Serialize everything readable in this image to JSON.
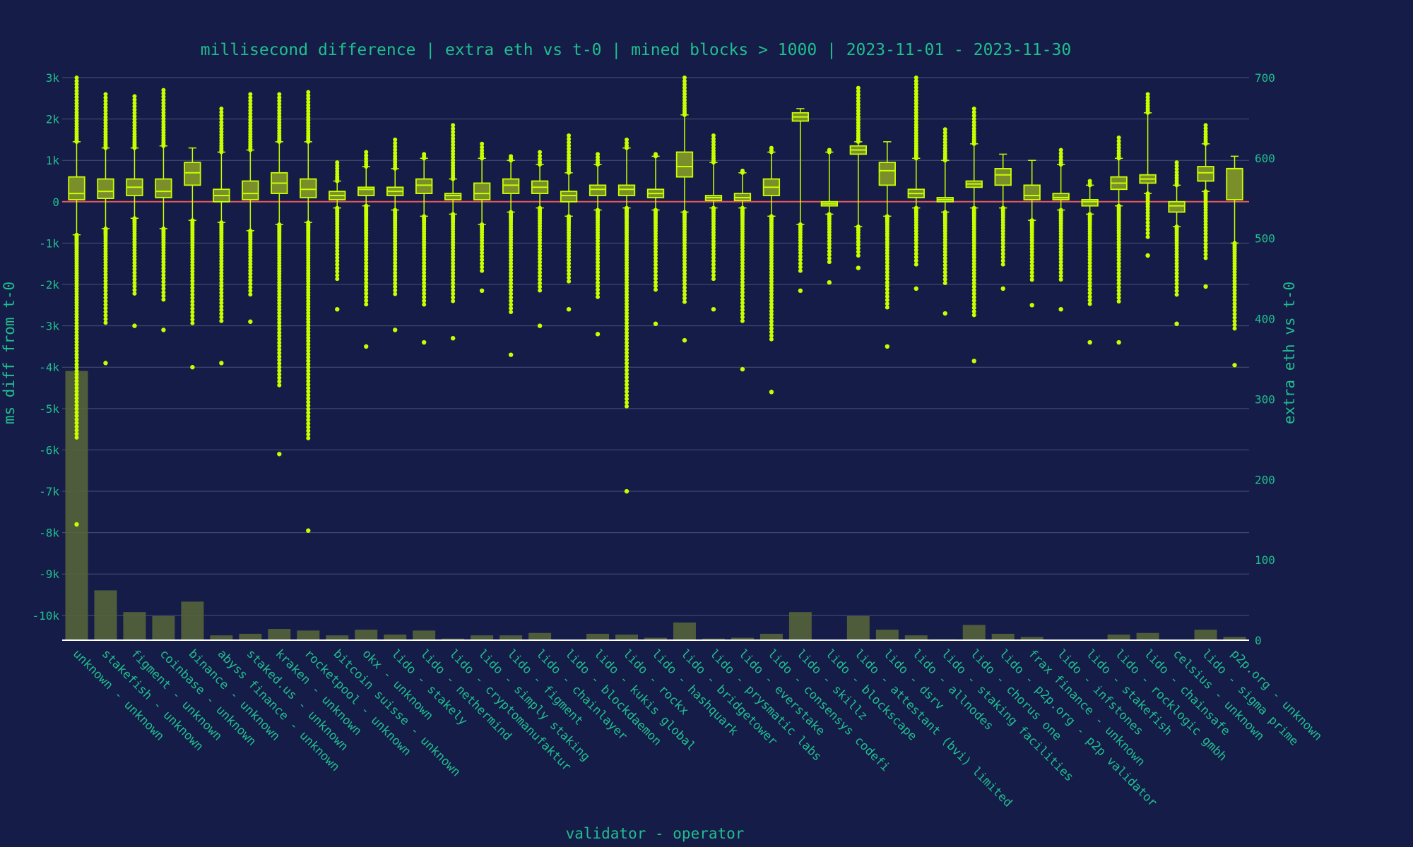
{
  "colors": {
    "background": "#151c47",
    "text": "#1fbf8f",
    "grid": "#4a5078",
    "box": "#c8ff00",
    "box_fill": "#7a8f2a",
    "bar": "#55643a",
    "zero_line": "#e05a5a"
  },
  "chart_data": {
    "type": "box",
    "title": "millisecond difference | extra eth vs t-0 | mined blocks > 1000 | 2023-11-01 - 2023-11-30",
    "xlabel": "validator - operator",
    "ylabel": "ms diff from t-0",
    "y2label": "extra eth vs t-0",
    "ylim": [
      -10600,
      3000
    ],
    "y2lim": [
      0,
      700
    ],
    "yticks": [
      3000,
      2000,
      1000,
      0,
      -1000,
      -2000,
      -3000,
      -4000,
      -5000,
      -6000,
      -7000,
      -8000,
      -9000,
      -10000
    ],
    "ytick_labels": [
      "3k",
      "2k",
      "1k",
      "0",
      "-1k",
      "-2k",
      "-3k",
      "-4k",
      "-5k",
      "-6k",
      "-7k",
      "-8k",
      "-9k",
      "-10k"
    ],
    "y2ticks": [
      0,
      100,
      200,
      300,
      400,
      500,
      600,
      700
    ],
    "categories": [
      "unknown - unknown",
      "stakefish - unknown",
      "figment - unknown",
      "coinbase - unknown",
      "binance - unknown",
      "abyss finance - unknown",
      "staked.us - unknown",
      "kraken - unknown",
      "rocketpool - unknown",
      "bitcoin suisse - unknown",
      "okx - unknown",
      "lido - stakely",
      "lido - nethermind",
      "lido - cryptomanufaktur",
      "lido - simply staking",
      "lido - figment",
      "lido - chainlayer",
      "lido - blockdaemon",
      "lido - kukis global",
      "lido - rockx",
      "lido - hashquark",
      "lido - bridgetower",
      "lido - prysmatic labs",
      "lido - everstake",
      "lido - consensys codefi",
      "lido - skillz",
      "lido - blockscape",
      "lido - attestant (bvi) limited",
      "lido - dsrv",
      "lido - allnodes",
      "lido - staking facilities",
      "lido - chorus one",
      "lido - p2p.org - p2p validator",
      "frax finance - unknown",
      "lido - infstones",
      "lido - stakefish",
      "lido - rocklogic gmbh",
      "lido - chainsafe",
      "celsius - unknown",
      "lido - sigma prime",
      "p2p.org - unknown"
    ],
    "box_series": {
      "name": "ms diff from t-0",
      "q1": [
        50,
        80,
        150,
        100,
        400,
        0,
        50,
        200,
        100,
        50,
        150,
        150,
        200,
        50,
        50,
        200,
        200,
        0,
        150,
        150,
        100,
        600,
        30,
        30,
        150,
        1950,
        -100,
        1150,
        400,
        100,
        0,
        350,
        400,
        50,
        50,
        -100,
        300,
        450,
        -250,
        500,
        50
      ],
      "median": [
        200,
        250,
        350,
        250,
        700,
        150,
        200,
        450,
        300,
        150,
        300,
        250,
        400,
        150,
        200,
        400,
        350,
        150,
        300,
        300,
        200,
        850,
        100,
        100,
        350,
        2050,
        -50,
        1250,
        750,
        200,
        50,
        430,
        650,
        150,
        100,
        0,
        450,
        550,
        -100,
        700,
        800
      ],
      "q3": [
        600,
        550,
        550,
        550,
        950,
        300,
        500,
        700,
        550,
        250,
        350,
        350,
        550,
        200,
        450,
        550,
        500,
        250,
        400,
        400,
        300,
        1200,
        150,
        200,
        550,
        2150,
        0,
        1350,
        950,
        300,
        100,
        500,
        800,
        400,
        200,
        50,
        600,
        650,
        0,
        850,
        800
      ],
      "lower": [
        -800,
        -650,
        -400,
        -650,
        -450,
        -500,
        -700,
        -550,
        -500,
        -150,
        -100,
        -200,
        -350,
        -300,
        -550,
        -250,
        -150,
        -350,
        -200,
        -150,
        -200,
        -250,
        -150,
        -150,
        -350,
        -550,
        -300,
        -600,
        -350,
        -150,
        -250,
        -150,
        -150,
        -450,
        -200,
        -300,
        -100,
        200,
        -600,
        250,
        -1000
      ],
      "upper": [
        1450,
        1300,
        1300,
        1350,
        1300,
        1200,
        1250,
        1450,
        1450,
        500,
        850,
        800,
        1050,
        550,
        1050,
        1000,
        900,
        700,
        900,
        1300,
        1100,
        2100,
        950,
        700,
        1200,
        2250,
        1200,
        1450,
        1450,
        1050,
        1000,
        1400,
        1150,
        1000,
        900,
        400,
        1050,
        2150,
        400,
        1400,
        1100
      ],
      "upper_fliers": [
        3000,
        2600,
        2550,
        2700,
        0,
        2250,
        2600,
        2600,
        2650,
        950,
        1200,
        1500,
        1150,
        1850,
        1400,
        1100,
        1200,
        1600,
        1150,
        1500,
        1150,
        3000,
        1600,
        750,
        1300,
        0,
        1250,
        2750,
        0,
        3000,
        1750,
        2250,
        0,
        1000,
        1250,
        500,
        1550,
        2600,
        950,
        1850,
        0
      ],
      "lower_fliers": [
        -7800,
        -3900,
        -3000,
        -3100,
        -4000,
        -3900,
        -2900,
        -6100,
        -7950,
        -2600,
        -3500,
        -3100,
        -3400,
        -3300,
        -2150,
        -3700,
        -3000,
        -2600,
        -3200,
        -7000,
        -2950,
        -3350,
        -2600,
        -4050,
        -4600,
        -2150,
        -1950,
        -1600,
        -3500,
        -2100,
        -2700,
        -3850,
        -2100,
        -2500,
        -2600,
        -3400,
        -3400,
        -1300,
        -2950,
        -2050,
        -3950
      ]
    },
    "bar_series": {
      "name": "extra eth vs t-0",
      "values": [
        335,
        62,
        35,
        30,
        48,
        6,
        8,
        14,
        12,
        6,
        13,
        7,
        12,
        2,
        6,
        6,
        9,
        0,
        8,
        7,
        3,
        22,
        2,
        3,
        8,
        35,
        0,
        30,
        13,
        6,
        1,
        19,
        8,
        4,
        0,
        0,
        7,
        9,
        0,
        13,
        4
      ]
    }
  }
}
